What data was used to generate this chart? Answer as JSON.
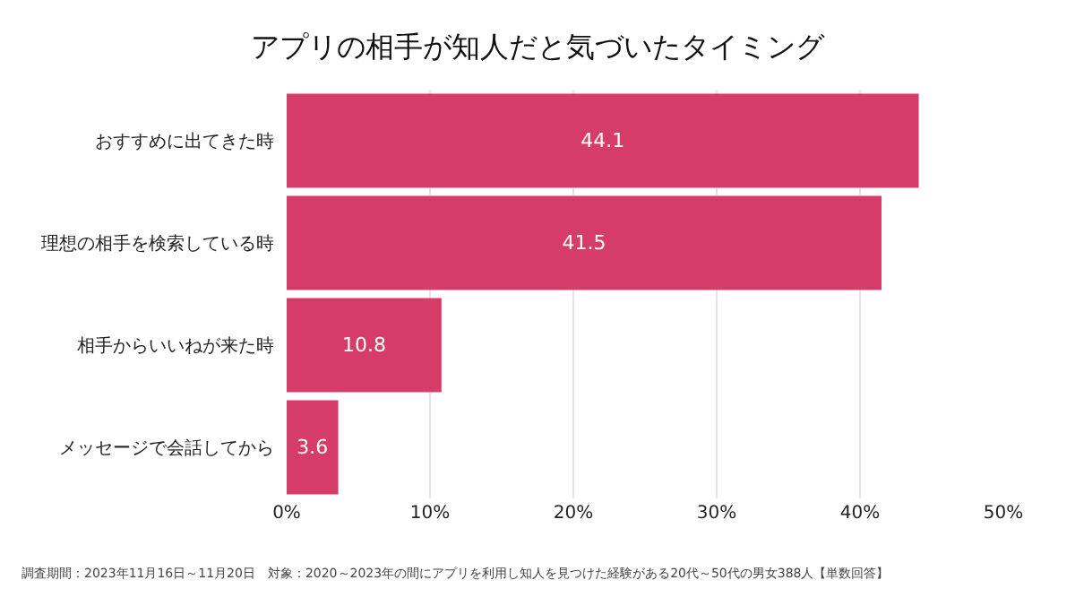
{
  "chart_data": {
    "type": "bar",
    "orientation": "horizontal",
    "title": "アプリの相手が知人だと気づいたタイミング",
    "categories": [
      "おすすめに出てきた時",
      "理想の相手を検索している時",
      "相手からいいねが来た時",
      "メッセージで会話してから"
    ],
    "values": [
      44.1,
      41.5,
      10.8,
      3.6
    ],
    "color": "#d63c69",
    "data_labels": true,
    "xlim": [
      0,
      50
    ],
    "xticks": [
      {
        "value": 0,
        "label": "0%"
      },
      {
        "value": 10,
        "label": "10%"
      },
      {
        "value": 20,
        "label": "20%"
      },
      {
        "value": 30,
        "label": "30%"
      },
      {
        "value": 40,
        "label": "40%"
      },
      {
        "value": 50,
        "label": "50%"
      }
    ],
    "grid": "x",
    "annotations": [
      "調査期間：2023年11月16日～11月20日　対象：2020～2023年の間にアプリを利用し知人を見つけた経験がある20代～50代の男女388人【単数回答】"
    ]
  }
}
